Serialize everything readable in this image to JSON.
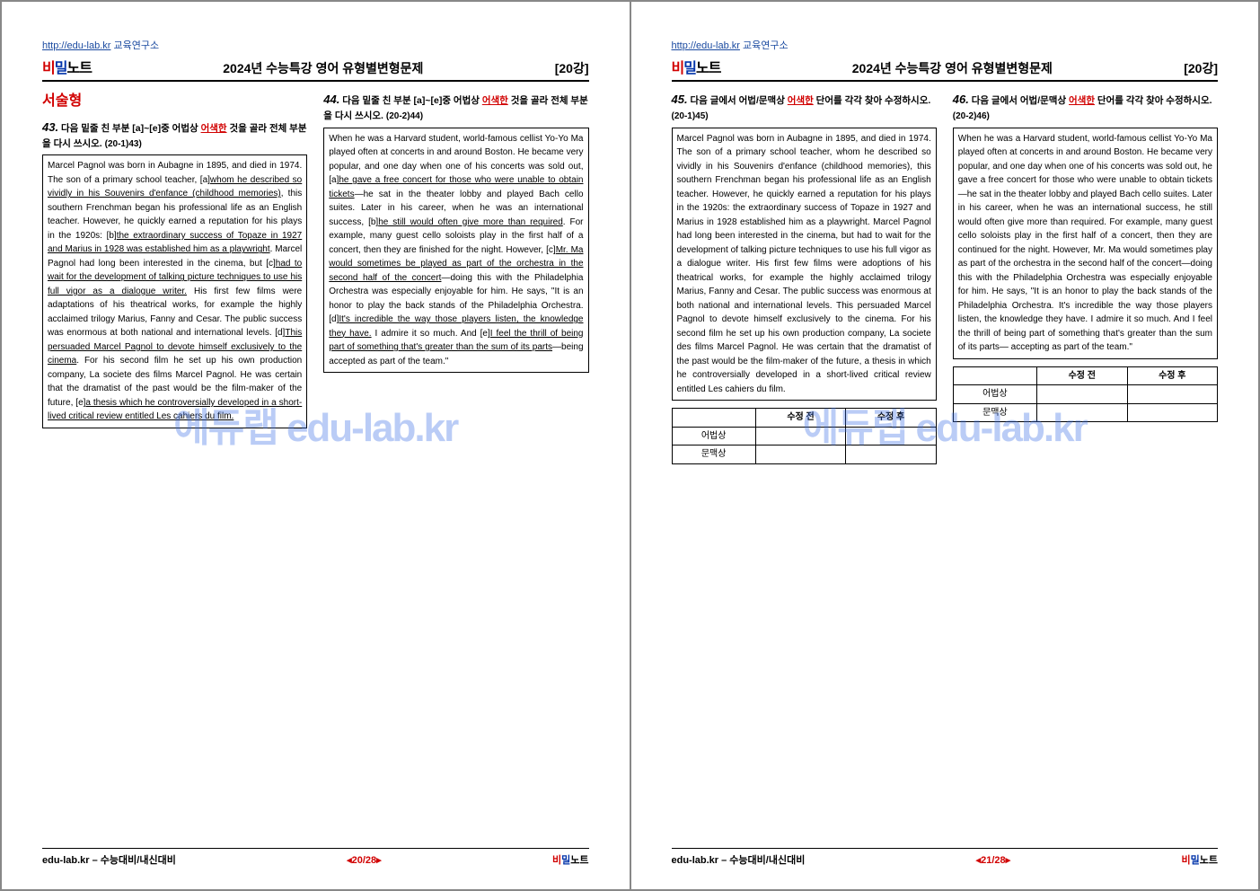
{
  "header": {
    "site_url": "http://edu-lab.kr",
    "site_label": "교육연구소",
    "brand_bi": "비",
    "brand_mil": "밀",
    "brand_note": "노트",
    "doc_title": "2024년 수능특강 영어 유형별변형문제",
    "lesson": "[20강]"
  },
  "watermark": "에듀랩 edu-lab.kr",
  "section_head": "서술형",
  "q43": {
    "num": "43.",
    "prompt_pre": "다음 밑줄 친 부분 [a]~[e]중 어법상 ",
    "prompt_red": "어색한",
    "prompt_post": " 것을 골라 전체 부분을 다시 쓰시오.",
    "ref": "(20-1)43)",
    "text": "Marcel Pagnol was born in Aubagne in 1895, and died in 1974. The son of a primary school teacher, [a]<u>whom he described so vividly in his Souvenirs d'enfance (childhood memories)</u>, this southern Frenchman began his professional life as an English teacher. However, he quickly earned a reputation for his plays in the 1920s: [b]<u>the extraordinary success of Topaze in 1927 and Marius in 1928 was established him as a playwright</u>. Marcel Pagnol had long been interested in the cinema, but [c]<u>had to wait for the development of talking picture techniques to use his full vigor as a dialogue writer.</u> His first few films were adaptations of his theatrical works, for example the highly acclaimed trilogy Marius, Fanny and Cesar. The public success was enormous at both national and international levels. [d]<u>This persuaded Marcel Pagnol to devote himself exclusively to the cinema</u>. For his second film he set up his own production company, La societe des films Marcel Pagnol. He was certain that the dramatist of the past would be the film-maker of the future, [e]<u>a thesis which he controversially developed in a short-lived critical review entitled Les cahiers du film.</u>"
  },
  "q44": {
    "num": "44.",
    "prompt_pre": "다음 밑줄 친 부분 [a]~[e]중 어법상 ",
    "prompt_red": "어색한",
    "prompt_post": " 것을 골라 전체 부분을 다시 쓰시오.",
    "ref": "(20-2)44)",
    "text": "When he was a Harvard student, world-famous cellist Yo-Yo Ma played often at concerts in and around Boston. He became very popular, and one day when one of his concerts was sold out, [a]<u>he gave a free concert for those who were unable to obtain tickets</u>—he sat in the theater lobby and played Bach cello suites. Later in his career, when he was an international success, [b]<u>he still would often give more than required</u>. For example, many guest cello soloists play in the first half of a concert, then they are finished for the night. However, [c]<u>Mr. Ma would sometimes be played as part of the orchestra in the second half of the concert</u>—doing this with the Philadelphia Orchestra was especially enjoyable for him. He says, \"It is an honor to play the back stands of the Philadelphia Orchestra. [d]<u>It's incredible the way those players listen, the knowledge they have.</u> I admire it so much. And [e]<u>I feel the thrill of being part of something that's greater than the sum of its parts</u>—being accepted as part of the team.\""
  },
  "q45": {
    "num": "45.",
    "prompt_pre": "다음 글에서 어법/문맥상 ",
    "prompt_red": "어색한",
    "prompt_post": " 단어를 각각 찾아 수정하시오.",
    "ref": "(20-1)45)",
    "text": "Marcel Pagnol was born in Aubagne in 1895, and died in 1974. The son of a primary school teacher, whom he described so vividly in his Souvenirs d'enfance (childhood memories), this southern Frenchman began his professional life as an English teacher. However, he quickly earned a reputation for his plays in the 1920s: the extraordinary success of Topaze in 1927 and Marius in 1928 established him as a playwright. Marcel Pagnol had long been interested in the cinema, but had to wait for the development of talking picture techniques to use his full vigor as a dialogue writer. His first few films were adoptions of his theatrical works, for example the highly acclaimed trilogy Marius, Fanny and Cesar. The public success was enormous at both national and international levels. This persuaded Marcel Pagnol to devote himself exclusively to the cinema. For his second film he set up his own production company, La societe des films Marcel Pagnol. He was certain that the dramatist of the past would be the film-maker of the future, a thesis in which he controversially developed in a short-lived critical review entitled Les cahiers du film."
  },
  "q46": {
    "num": "46.",
    "prompt_pre": "다음 글에서 어법/문맥상 ",
    "prompt_red": "어색한",
    "prompt_post": " 단어를 각각 찾아 수정하시오.",
    "ref": "(20-2)46)",
    "text": "When he was a Harvard student, world-famous cellist Yo-Yo Ma played often at concerts in and around Boston. He became very popular, and one day when one of his concerts was sold out, he gave a free concert for those who were unable to obtain tickets—he sat in the theater lobby and played Bach cello suites. Later in his career, when he was an international success, he still would often give more than required. For example, many guest cello soloists play in the first half of a concert, then they are continued for the night. However, Mr. Ma would sometimes play as part of the orchestra in the second half of the concert—doing this with the Philadelphia Orchestra was especially enjoyable for him. He says, \"It is an honor to play the back stands of the Philadelphia Orchestra. It's incredible the way those players listen, the knowledge they have. I admire it so much. And I feel the thrill of being part of something that's greater than the sum of its parts— accepting as part of the team.\""
  },
  "ans_table": {
    "col_before": "수정 전",
    "col_after": "수정 후",
    "row_grammar": "어법상",
    "row_context": "문맥상"
  },
  "footer": {
    "left": "edu-lab.kr – 수능대비/내신대비",
    "pg20": "◂20/28▸",
    "pg21": "◂21/28▸"
  }
}
